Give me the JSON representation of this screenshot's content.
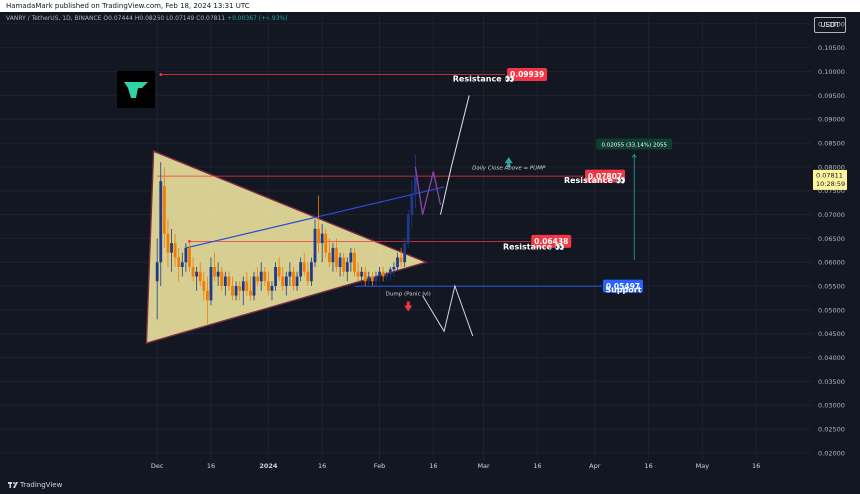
{
  "header": {
    "published_line": "HamadaMark published on TradingView.com, Feb 18, 2024 13:31 UTC",
    "symbol_line": "VANRY / TetherUS, 1D, BINANCE",
    "ohlc": "O0.07444 H0.08260 L0.07149 C0.07811",
    "change": "+0.00367 (+4.93%)",
    "currency": "USDT"
  },
  "footer": {
    "brand": "TradingView"
  },
  "chart_data": {
    "type": "candlestick",
    "symbol": "VANRY / TetherUS",
    "interval": "1D",
    "exchange": "BINANCE",
    "y_axis": {
      "ylim": [
        0.0185,
        0.1125
      ],
      "ticks": [
        "0.11000",
        "0.10500",
        "0.10000",
        "0.09500",
        "0.09000",
        "0.08500",
        "0.08000",
        "0.07500",
        "0.07000",
        "0.06500",
        "0.06000",
        "0.05500",
        "0.05000",
        "0.04500",
        "0.04000",
        "0.03500",
        "0.03000",
        "0.02500",
        "0.02000"
      ],
      "tick_values": [
        0.11,
        0.105,
        0.1,
        0.095,
        0.09,
        0.085,
        0.08,
        0.075,
        0.07,
        0.065,
        0.06,
        0.055,
        0.05,
        0.045,
        0.04,
        0.035,
        0.03,
        0.025,
        0.02
      ]
    },
    "x_axis": {
      "tick_labels": [
        "Dec",
        "16",
        "2024",
        "16",
        "Feb",
        "16",
        "Mar",
        "16",
        "Apr",
        "16",
        "May",
        "16"
      ],
      "tick_days": [
        0,
        15,
        31,
        46,
        62,
        77,
        91,
        106,
        122,
        137,
        152,
        167
      ],
      "xlim_days": [
        -2,
        182
      ]
    },
    "last_price": {
      "value": "0.07811",
      "countdown": "10:28:59"
    },
    "price_labels": [
      {
        "text": "0.09939",
        "value": 0.09939,
        "color": "#f23645"
      },
      {
        "text": "0.07807",
        "value": 0.07807,
        "color": "#f23645"
      },
      {
        "text": "0.06438",
        "value": 0.06438,
        "color": "#f23645"
      },
      {
        "text": "0.05497",
        "value": 0.05497,
        "color": "#2962ff"
      }
    ],
    "annotations": [
      {
        "text": "Resistance 👀",
        "day": 91,
        "value": 0.0979
      },
      {
        "text": "Resistance 👀",
        "day": 122,
        "value": 0.0766
      },
      {
        "text": "Resistance 👀",
        "day": 105,
        "value": 0.0627
      },
      {
        "text": "Support",
        "day": 130,
        "value": 0.0536
      },
      {
        "text": "Daily Close Above = PUMP",
        "day": 98,
        "value": 0.0795
      },
      {
        "text": "Dump (Panic lvl)",
        "day": 70,
        "value": 0.053
      },
      {
        "text": "0.02055 (33.14%) 2055",
        "day": 133,
        "value": 0.0848
      }
    ],
    "candles": [
      {
        "d": 0,
        "o": 0.056,
        "h": 0.065,
        "l": 0.048,
        "c": 0.06
      },
      {
        "d": 1,
        "o": 0.06,
        "h": 0.081,
        "l": 0.055,
        "c": 0.077
      },
      {
        "d": 2,
        "o": 0.076,
        "h": 0.08,
        "l": 0.063,
        "c": 0.066
      },
      {
        "d": 3,
        "o": 0.066,
        "h": 0.069,
        "l": 0.059,
        "c": 0.062
      },
      {
        "d": 4,
        "o": 0.062,
        "h": 0.067,
        "l": 0.058,
        "c": 0.064
      },
      {
        "d": 5,
        "o": 0.064,
        "h": 0.066,
        "l": 0.059,
        "c": 0.061
      },
      {
        "d": 6,
        "o": 0.061,
        "h": 0.063,
        "l": 0.056,
        "c": 0.059
      },
      {
        "d": 7,
        "o": 0.059,
        "h": 0.062,
        "l": 0.057,
        "c": 0.06
      },
      {
        "d": 8,
        "o": 0.06,
        "h": 0.064,
        "l": 0.058,
        "c": 0.063
      },
      {
        "d": 9,
        "o": 0.063,
        "h": 0.064,
        "l": 0.058,
        "c": 0.059
      },
      {
        "d": 10,
        "o": 0.059,
        "h": 0.061,
        "l": 0.056,
        "c": 0.057
      },
      {
        "d": 11,
        "o": 0.057,
        "h": 0.059,
        "l": 0.054,
        "c": 0.058
      },
      {
        "d": 12,
        "o": 0.058,
        "h": 0.06,
        "l": 0.055,
        "c": 0.056
      },
      {
        "d": 13,
        "o": 0.056,
        "h": 0.058,
        "l": 0.052,
        "c": 0.054
      },
      {
        "d": 14,
        "o": 0.054,
        "h": 0.057,
        "l": 0.047,
        "c": 0.052
      },
      {
        "d": 15,
        "o": 0.052,
        "h": 0.061,
        "l": 0.051,
        "c": 0.059
      },
      {
        "d": 16,
        "o": 0.059,
        "h": 0.062,
        "l": 0.056,
        "c": 0.057
      },
      {
        "d": 17,
        "o": 0.057,
        "h": 0.06,
        "l": 0.055,
        "c": 0.058
      },
      {
        "d": 18,
        "o": 0.058,
        "h": 0.059,
        "l": 0.054,
        "c": 0.055
      },
      {
        "d": 19,
        "o": 0.055,
        "h": 0.058,
        "l": 0.053,
        "c": 0.057
      },
      {
        "d": 20,
        "o": 0.057,
        "h": 0.058,
        "l": 0.054,
        "c": 0.055
      },
      {
        "d": 21,
        "o": 0.055,
        "h": 0.057,
        "l": 0.052,
        "c": 0.053
      },
      {
        "d": 22,
        "o": 0.053,
        "h": 0.056,
        "l": 0.052,
        "c": 0.055
      },
      {
        "d": 23,
        "o": 0.055,
        "h": 0.056,
        "l": 0.052,
        "c": 0.054
      },
      {
        "d": 24,
        "o": 0.054,
        "h": 0.057,
        "l": 0.051,
        "c": 0.056
      },
      {
        "d": 25,
        "o": 0.056,
        "h": 0.058,
        "l": 0.053,
        "c": 0.054
      },
      {
        "d": 26,
        "o": 0.054,
        "h": 0.057,
        "l": 0.052,
        "c": 0.053
      },
      {
        "d": 27,
        "o": 0.053,
        "h": 0.058,
        "l": 0.052,
        "c": 0.057
      },
      {
        "d": 28,
        "o": 0.057,
        "h": 0.059,
        "l": 0.055,
        "c": 0.056
      },
      {
        "d": 29,
        "o": 0.056,
        "h": 0.06,
        "l": 0.054,
        "c": 0.058
      },
      {
        "d": 30,
        "o": 0.058,
        "h": 0.059,
        "l": 0.055,
        "c": 0.056
      },
      {
        "d": 31,
        "o": 0.056,
        "h": 0.058,
        "l": 0.053,
        "c": 0.054
      },
      {
        "d": 32,
        "o": 0.054,
        "h": 0.056,
        "l": 0.052,
        "c": 0.055
      },
      {
        "d": 33,
        "o": 0.055,
        "h": 0.06,
        "l": 0.054,
        "c": 0.059
      },
      {
        "d": 34,
        "o": 0.059,
        "h": 0.061,
        "l": 0.056,
        "c": 0.057
      },
      {
        "d": 35,
        "o": 0.057,
        "h": 0.059,
        "l": 0.054,
        "c": 0.055
      },
      {
        "d": 36,
        "o": 0.055,
        "h": 0.058,
        "l": 0.053,
        "c": 0.057
      },
      {
        "d": 37,
        "o": 0.057,
        "h": 0.06,
        "l": 0.055,
        "c": 0.058
      },
      {
        "d": 38,
        "o": 0.058,
        "h": 0.059,
        "l": 0.054,
        "c": 0.055
      },
      {
        "d": 39,
        "o": 0.055,
        "h": 0.058,
        "l": 0.054,
        "c": 0.057
      },
      {
        "d": 40,
        "o": 0.057,
        "h": 0.061,
        "l": 0.056,
        "c": 0.06
      },
      {
        "d": 41,
        "o": 0.06,
        "h": 0.062,
        "l": 0.057,
        "c": 0.058
      },
      {
        "d": 42,
        "o": 0.058,
        "h": 0.06,
        "l": 0.055,
        "c": 0.056
      },
      {
        "d": 43,
        "o": 0.056,
        "h": 0.061,
        "l": 0.055,
        "c": 0.06
      },
      {
        "d": 44,
        "o": 0.06,
        "h": 0.069,
        "l": 0.059,
        "c": 0.067
      },
      {
        "d": 45,
        "o": 0.067,
        "h": 0.074,
        "l": 0.062,
        "c": 0.064
      },
      {
        "d": 46,
        "o": 0.064,
        "h": 0.068,
        "l": 0.06,
        "c": 0.066
      },
      {
        "d": 47,
        "o": 0.066,
        "h": 0.067,
        "l": 0.061,
        "c": 0.062
      },
      {
        "d": 48,
        "o": 0.062,
        "h": 0.065,
        "l": 0.059,
        "c": 0.06
      },
      {
        "d": 49,
        "o": 0.06,
        "h": 0.064,
        "l": 0.058,
        "c": 0.063
      },
      {
        "d": 50,
        "o": 0.063,
        "h": 0.065,
        "l": 0.058,
        "c": 0.059
      },
      {
        "d": 51,
        "o": 0.059,
        "h": 0.062,
        "l": 0.057,
        "c": 0.061
      },
      {
        "d": 52,
        "o": 0.061,
        "h": 0.062,
        "l": 0.057,
        "c": 0.058
      },
      {
        "d": 53,
        "o": 0.058,
        "h": 0.061,
        "l": 0.056,
        "c": 0.06
      },
      {
        "d": 54,
        "o": 0.06,
        "h": 0.063,
        "l": 0.058,
        "c": 0.062
      },
      {
        "d": 55,
        "o": 0.062,
        "h": 0.063,
        "l": 0.057,
        "c": 0.058
      },
      {
        "d": 56,
        "o": 0.058,
        "h": 0.06,
        "l": 0.056,
        "c": 0.057
      },
      {
        "d": 57,
        "o": 0.057,
        "h": 0.059,
        "l": 0.055,
        "c": 0.058
      },
      {
        "d": 58,
        "o": 0.058,
        "h": 0.059,
        "l": 0.055,
        "c": 0.056
      },
      {
        "d": 59,
        "o": 0.056,
        "h": 0.058,
        "l": 0.055,
        "c": 0.057
      },
      {
        "d": 60,
        "o": 0.057,
        "h": 0.058,
        "l": 0.055,
        "c": 0.056
      },
      {
        "d": 61,
        "o": 0.056,
        "h": 0.058,
        "l": 0.055,
        "c": 0.057
      },
      {
        "d": 62,
        "o": 0.057,
        "h": 0.059,
        "l": 0.056,
        "c": 0.058
      },
      {
        "d": 63,
        "o": 0.058,
        "h": 0.059,
        "l": 0.056,
        "c": 0.057
      },
      {
        "d": 64,
        "o": 0.057,
        "h": 0.058,
        "l": 0.056,
        "c": 0.0575
      },
      {
        "d": 65,
        "o": 0.0575,
        "h": 0.059,
        "l": 0.056,
        "c": 0.0585
      },
      {
        "d": 66,
        "o": 0.0585,
        "h": 0.06,
        "l": 0.057,
        "c": 0.059
      },
      {
        "d": 67,
        "o": 0.059,
        "h": 0.062,
        "l": 0.058,
        "c": 0.061
      },
      {
        "d": 68,
        "o": 0.061,
        "h": 0.063,
        "l": 0.059,
        "c": 0.06
      },
      {
        "d": 69,
        "o": 0.06,
        "h": 0.065,
        "l": 0.059,
        "c": 0.064
      },
      {
        "d": 70,
        "o": 0.064,
        "h": 0.071,
        "l": 0.063,
        "c": 0.07
      },
      {
        "d": 71,
        "o": 0.07,
        "h": 0.077,
        "l": 0.067,
        "c": 0.074
      },
      {
        "d": 72,
        "o": 0.07444,
        "h": 0.0826,
        "l": 0.07149,
        "c": 0.07811
      }
    ]
  }
}
